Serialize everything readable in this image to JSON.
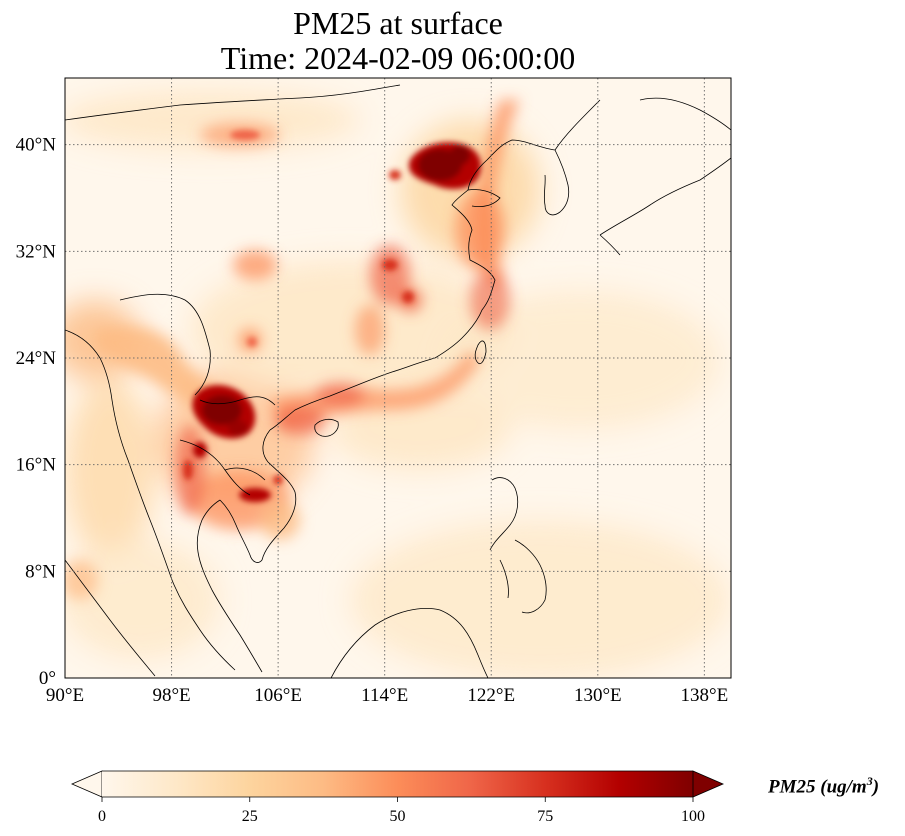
{
  "title": {
    "line1": "PM25 at surface",
    "line2": "Time: 2024-02-09 06:00:00"
  },
  "map": {
    "extent": {
      "lon": [
        90,
        140
      ],
      "lat": [
        0,
        45
      ]
    },
    "x_ticks": [
      {
        "value": 90,
        "label": "90°E"
      },
      {
        "value": 98,
        "label": "98°E"
      },
      {
        "value": 106,
        "label": "106°E"
      },
      {
        "value": 114,
        "label": "114°E"
      },
      {
        "value": 122,
        "label": "122°E"
      },
      {
        "value": 130,
        "label": "130°E"
      },
      {
        "value": 138,
        "label": "138°E"
      }
    ],
    "y_ticks": [
      {
        "value": 0,
        "label": "0°"
      },
      {
        "value": 8,
        "label": "8°N"
      },
      {
        "value": 16,
        "label": "16°N"
      },
      {
        "value": 24,
        "label": "24°N"
      },
      {
        "value": 32,
        "label": "32°N"
      },
      {
        "value": 40,
        "label": "40°N"
      }
    ],
    "gridlines": true,
    "colormap": "OrRd",
    "hotspots": [
      {
        "name": "north-china-plain",
        "lon": 117.5,
        "lat": 38.5,
        "value": 100
      },
      {
        "name": "beijing-region",
        "lon": 116.5,
        "lat": 39.5,
        "value": 95
      },
      {
        "name": "yellow-sea-plume",
        "lon": 121,
        "lat": 36,
        "value": 45
      },
      {
        "name": "northern-laos",
        "lon": 102.5,
        "lat": 20,
        "value": 100
      },
      {
        "name": "myanmar-border",
        "lon": 99.5,
        "lat": 16,
        "value": 60
      },
      {
        "name": "cambodia",
        "lon": 104.5,
        "lat": 13.5,
        "value": 70
      },
      {
        "name": "hubei-basin",
        "lon": 114,
        "lat": 31,
        "value": 60
      },
      {
        "name": "yangtze-delta",
        "lon": 120.5,
        "lat": 31,
        "value": 50
      },
      {
        "name": "taiwan-strait",
        "lon": 118,
        "lat": 24.5,
        "value": 35
      },
      {
        "name": "south-china-coast",
        "lon": 112,
        "lat": 21.5,
        "value": 40
      },
      {
        "name": "sichuan",
        "lon": 104.5,
        "lat": 30,
        "value": 35
      },
      {
        "name": "inner-mongolia",
        "lon": 104,
        "lat": 40.5,
        "value": 40
      },
      {
        "name": "bay-of-bengal",
        "lon": 92,
        "lat": 17,
        "value": 25
      },
      {
        "name": "gulf-of-tonkin",
        "lon": 108,
        "lat": 18,
        "value": 30
      }
    ]
  },
  "colorbar": {
    "min": 0,
    "max": 100,
    "extend": "both",
    "ticks": [
      {
        "value": 0,
        "label": "0"
      },
      {
        "value": 25,
        "label": "25"
      },
      {
        "value": 50,
        "label": "50"
      },
      {
        "value": 75,
        "label": "75"
      },
      {
        "value": 100,
        "label": "100"
      }
    ],
    "label_main": "PM25 (ug/m",
    "label_sup": "3",
    "label_close": ")"
  },
  "colors": {
    "low": "#fff7ec",
    "c25": "#fdd49e",
    "c50": "#fc8d59",
    "c75": "#d7301f",
    "high": "#7f0000"
  }
}
